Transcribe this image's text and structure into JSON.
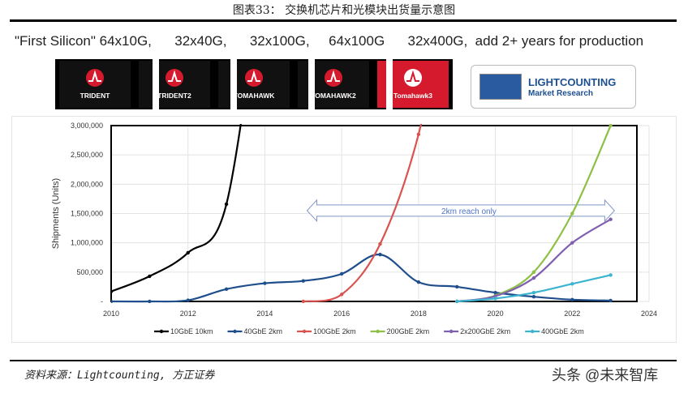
{
  "header": {
    "title": "图表33：  交换机芯片和光模块出货量示意图"
  },
  "subtitle": "\"First Silicon\" 64x10G,      32x40G,      32x100G,     64x100G      32x400G,  add 2+ years for production",
  "chips": [
    {
      "label": "TRIDENT"
    },
    {
      "label": "TRIDENT2"
    },
    {
      "label": "TOMAHAWK"
    },
    {
      "label": "TOMAHAWK2"
    },
    {
      "label": "Tomahawk3"
    }
  ],
  "logo": {
    "name": "LIGHTCOUNTING",
    "tagline": "Market Research"
  },
  "chart_data": {
    "type": "line",
    "title": "",
    "xlabel": "",
    "ylabel": "Shipments (Units)",
    "xlim": [
      2010,
      2024
    ],
    "ylim": [
      0,
      3000000
    ],
    "xticks": [
      "2010",
      "2012",
      "2014",
      "2016",
      "2018",
      "2020",
      "2022",
      "2024"
    ],
    "yticks": [
      "-",
      "500,000",
      "1,000,000",
      "1,500,000",
      "2,000,000",
      "2,500,000",
      "3,000,000"
    ],
    "grid": true,
    "legend": "bottom",
    "annotation": {
      "text": "2km reach only",
      "x_from": 2015.1,
      "x_to": 2023.1,
      "y": 1550000
    },
    "series": [
      {
        "name": "10GbE 10km",
        "color": "#000000",
        "x": [
          2010,
          2011,
          2012,
          2013,
          2014
        ],
        "y": [
          170000,
          430000,
          830000,
          1660000,
          6000000
        ]
      },
      {
        "name": "40GbE 2km",
        "color": "#1f4e8c",
        "x": [
          2010,
          2011,
          2012,
          2013,
          2014,
          2015,
          2016,
          2017,
          2018,
          2019,
          2020,
          2021,
          2022,
          2023
        ],
        "y": [
          0,
          0,
          20000,
          210000,
          310000,
          350000,
          470000,
          800000,
          330000,
          250000,
          150000,
          80000,
          30000,
          15000
        ]
      },
      {
        "name": "100GbE 2km",
        "color": "#d9534f",
        "x": [
          2015,
          2016,
          2017,
          2018,
          2019
        ],
        "y": [
          0,
          120000,
          980000,
          2850000,
          6000000
        ]
      },
      {
        "name": "200GbE 2km",
        "color": "#8fc046",
        "x": [
          2019,
          2020,
          2021,
          2022,
          2023
        ],
        "y": [
          0,
          100000,
          500000,
          1500000,
          3000000
        ]
      },
      {
        "name": "2x200GbE 2km",
        "color": "#7f5fb0",
        "x": [
          2019,
          2020,
          2021,
          2022,
          2023
        ],
        "y": [
          0,
          90000,
          400000,
          1000000,
          1400000
        ]
      },
      {
        "name": "400GbE 2km",
        "color": "#3cb4cf",
        "x": [
          2019,
          2020,
          2021,
          2022,
          2023
        ],
        "y": [
          0,
          50000,
          150000,
          300000,
          450000
        ]
      }
    ]
  },
  "footer": {
    "source": "资料来源：Lightcounting, 方正证券",
    "watermark": "头条 @未来智库"
  }
}
